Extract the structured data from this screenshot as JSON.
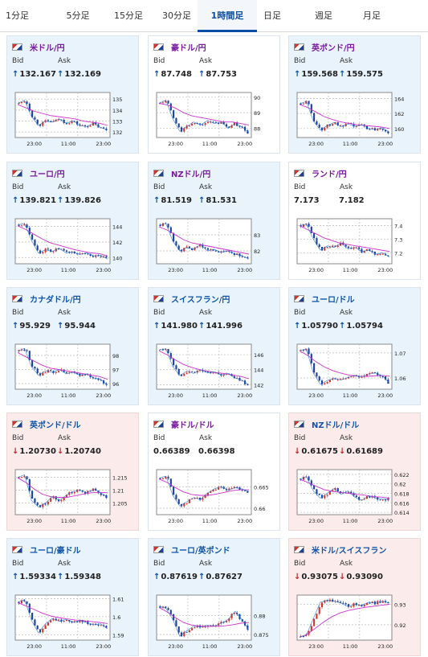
{
  "tabs": [
    {
      "label": "1分足",
      "active": false
    },
    {
      "label": "5分足",
      "active": false
    },
    {
      "label": "15分足",
      "active": false
    },
    {
      "label": "30分足",
      "active": false
    },
    {
      "label": "1時間足",
      "active": true
    },
    {
      "label": "日足",
      "active": false
    },
    {
      "label": "週足",
      "active": false
    },
    {
      "label": "月足",
      "active": false
    }
  ],
  "labels": {
    "bid": "Bid",
    "ask": "Ask"
  },
  "colors": {
    "accent": "#0a4fa6",
    "up": "#0a4fa6",
    "down": "#c0282d",
    "ma": "#cc33cc",
    "ma2": "#2277cc",
    "candle_up": "#d4312c",
    "candle_down": "#1a3fa3"
  },
  "cards": [
    {
      "pair": "米ドル/円",
      "flag": "us-jp-flag",
      "bg": "blue",
      "dir_bid": "up",
      "bid": "132.167",
      "dir_ask": "up",
      "ask": "132.169",
      "chart_data": {
        "type": "candlestick",
        "yticks": [
          "135",
          "134",
          "133",
          "132"
        ],
        "ylim": [
          131.5,
          135.6
        ],
        "xticks": [
          "23:00",
          "11:00",
          "23:00"
        ],
        "trend": [
          134.6,
          134.9,
          133.4,
          132.6,
          133.0,
          132.9,
          133.2,
          132.8,
          133.0,
          132.6,
          132.5,
          132.8,
          132.4,
          132.2
        ],
        "ma": [
          134.5,
          134.2,
          133.9,
          133.7,
          133.5,
          133.4,
          133.3,
          133.2,
          133.0,
          132.9,
          132.8,
          132.6
        ]
      }
    },
    {
      "pair": "豪ドル/円",
      "flag": "au-jp-flag",
      "bg": "white",
      "dir_bid": "up",
      "bid": "87.748",
      "dir_ask": "up",
      "ask": "87.753",
      "chart_data": {
        "type": "candlestick",
        "yticks": [
          "90",
          "89",
          "88"
        ],
        "ylim": [
          87.4,
          90.3
        ],
        "xticks": [
          "23:00",
          "11:00",
          "23:00"
        ],
        "trend": [
          89.6,
          89.8,
          88.6,
          87.8,
          88.1,
          88.4,
          88.2,
          88.5,
          88.3,
          88.4,
          88.0,
          88.3,
          88.1,
          87.7
        ],
        "ma": [
          89.6,
          89.5,
          89.3,
          89.0,
          88.8,
          88.7,
          88.6,
          88.5,
          88.4,
          88.4,
          88.3,
          88.2
        ]
      }
    },
    {
      "pair": "英ポンド/円",
      "flag": "gb-jp-flag",
      "bg": "blue",
      "dir_bid": "up",
      "bid": "159.568",
      "dir_ask": "up",
      "ask": "159.575",
      "chart_data": {
        "type": "candlestick",
        "yticks": [
          "164",
          "162",
          "160"
        ],
        "ylim": [
          158.8,
          164.8
        ],
        "xticks": [
          "23:00",
          "11:00",
          "23:00"
        ],
        "trend": [
          163.3,
          163.6,
          161.0,
          159.8,
          160.4,
          160.8,
          160.2,
          160.6,
          160.3,
          160.5,
          160.0,
          159.9,
          160.1,
          159.5
        ],
        "ma": [
          163.2,
          162.8,
          162.2,
          161.6,
          161.2,
          160.9,
          160.7,
          160.5,
          160.4,
          160.3,
          160.2,
          160.0
        ]
      }
    },
    {
      "pair": "ユーロ/円",
      "flag": "eu-jp-flag",
      "bg": "blue",
      "dir_bid": "up",
      "bid": "139.821",
      "dir_ask": "up",
      "ask": "139.826",
      "chart_data": {
        "type": "candlestick",
        "yticks": [
          "144",
          "142",
          "140"
        ],
        "ylim": [
          139.2,
          145.0
        ],
        "xticks": [
          "23:00",
          "11:00",
          "23:00"
        ],
        "trend": [
          144.2,
          144.4,
          142.2,
          140.6,
          141.0,
          140.8,
          141.2,
          140.6,
          140.7,
          140.4,
          140.6,
          140.2,
          140.3,
          139.8
        ],
        "ma": [
          144.1,
          143.6,
          143.0,
          142.4,
          141.9,
          141.6,
          141.3,
          141.0,
          140.8,
          140.6,
          140.5,
          140.2
        ]
      }
    },
    {
      "pair": "NZドル/円",
      "flag": "nz-jp-flag",
      "bg": "blue",
      "dir_bid": "up",
      "bid": "81.519",
      "dir_ask": "up",
      "ask": "81.531",
      "chart_data": {
        "type": "candlestick",
        "yticks": [
          "83",
          "82"
        ],
        "ylim": [
          81.2,
          84.0
        ],
        "xticks": [
          "23:00",
          "11:00",
          "23:00"
        ],
        "trend": [
          83.6,
          83.7,
          82.6,
          82.0,
          82.2,
          82.1,
          82.4,
          82.0,
          82.1,
          81.9,
          82.0,
          81.8,
          81.7,
          81.5
        ],
        "ma": [
          83.5,
          83.3,
          83.0,
          82.7,
          82.5,
          82.4,
          82.3,
          82.2,
          82.1,
          82.0,
          81.9,
          81.8
        ]
      }
    },
    {
      "pair": "ランド/円",
      "flag": "za-jp-flag",
      "bg": "white",
      "dir_bid": "",
      "bid": "7.173",
      "dir_ask": "",
      "ask": "7.182",
      "chart_data": {
        "type": "candlestick",
        "yticks": [
          "7.4",
          "7.3",
          "7.2"
        ],
        "ylim": [
          7.12,
          7.45
        ],
        "xticks": [
          "23:00",
          "11:00",
          "23:00"
        ],
        "trend": [
          7.4,
          7.41,
          7.3,
          7.22,
          7.25,
          7.24,
          7.27,
          7.23,
          7.24,
          7.21,
          7.22,
          7.19,
          7.2,
          7.17
        ],
        "ma": [
          7.4,
          7.37,
          7.34,
          7.31,
          7.29,
          7.27,
          7.26,
          7.25,
          7.24,
          7.23,
          7.22,
          7.21
        ]
      }
    },
    {
      "pair": "カナダドル/円",
      "flag": "ca-jp-flag",
      "bg": "blue",
      "dir_bid": "up",
      "bid": "95.929",
      "dir_ask": "up",
      "ask": "95.944",
      "chart_data": {
        "type": "candlestick",
        "yticks": [
          "98",
          "97",
          "96"
        ],
        "ylim": [
          95.6,
          98.8
        ],
        "xticks": [
          "23:00",
          "11:00",
          "23:00"
        ],
        "trend": [
          98.3,
          98.5,
          97.2,
          96.6,
          96.9,
          96.8,
          97.0,
          96.7,
          96.8,
          96.6,
          96.7,
          96.4,
          96.3,
          95.9
        ],
        "ma": [
          98.2,
          97.9,
          97.6,
          97.3,
          97.1,
          97.0,
          96.9,
          96.8,
          96.7,
          96.6,
          96.5,
          96.3
        ]
      }
    },
    {
      "pair": "スイスフラン/円",
      "flag": "ch-jp-flag",
      "bg": "blue",
      "dir_bid": "up",
      "bid": "141.980",
      "dir_ask": "up",
      "ask": "141.996",
      "chart_data": {
        "type": "candlestick",
        "yticks": [
          "146",
          "144",
          "142"
        ],
        "ylim": [
          141.4,
          147.4
        ],
        "xticks": [
          "23:00",
          "11:00",
          "23:00"
        ],
        "trend": [
          146.6,
          146.8,
          144.4,
          143.2,
          143.8,
          143.5,
          144.0,
          143.6,
          143.7,
          143.3,
          143.5,
          142.9,
          142.6,
          142.0
        ],
        "ma": [
          146.5,
          146.0,
          145.3,
          144.7,
          144.3,
          144.0,
          143.8,
          143.6,
          143.5,
          143.3,
          143.1,
          142.8
        ]
      }
    },
    {
      "pair": "ユーロ/ドル",
      "flag": "eu-us-flag",
      "bg": "blue",
      "dir_bid": "up",
      "bid": "1.05790",
      "dir_ask": "up",
      "ask": "1.05794",
      "chart_data": {
        "type": "candlestick",
        "yticks": [
          "1.07",
          "1.06"
        ],
        "ylim": [
          1.0555,
          1.0735
        ],
        "xticks": [
          "23:00",
          "11:00",
          "23:00"
        ],
        "trend": [
          1.071,
          1.0715,
          1.062,
          1.0575,
          1.059,
          1.0598,
          1.0592,
          1.0602,
          1.061,
          1.0605,
          1.0615,
          1.062,
          1.0608,
          1.0579
        ],
        "ma": [
          1.0708,
          1.069,
          1.0665,
          1.0645,
          1.063,
          1.062,
          1.0612,
          1.0607,
          1.0606,
          1.0608,
          1.061,
          1.0607
        ]
      }
    },
    {
      "pair": "英ポンド/ドル",
      "flag": "gb-us-flag",
      "bg": "pink",
      "dir_bid": "down",
      "bid": "1.20730",
      "dir_ask": "down",
      "ask": "1.20740",
      "chart_data": {
        "type": "candlestick",
        "yticks": [
          "1.215",
          "1.21",
          "1.205"
        ],
        "ylim": [
          1.2005,
          1.218
        ],
        "xticks": [
          "23:00",
          "11:00",
          "23:00"
        ],
        "trend": [
          1.215,
          1.216,
          1.206,
          1.2035,
          1.205,
          1.2075,
          1.206,
          1.208,
          1.2095,
          1.21,
          1.209,
          1.2105,
          1.209,
          1.2073
        ],
        "ma": [
          1.2148,
          1.213,
          1.2105,
          1.2085,
          1.2075,
          1.2072,
          1.2072,
          1.2078,
          1.2085,
          1.209,
          1.2092,
          1.209
        ]
      }
    },
    {
      "pair": "豪ドル/ドル",
      "flag": "au-us-flag",
      "bg": "white",
      "dir_bid": "",
      "bid": "0.66389",
      "dir_ask": "",
      "ask": "0.66398",
      "chart_data": {
        "type": "candlestick",
        "yticks": [
          "0.665",
          "0.66"
        ],
        "ylim": [
          0.6585,
          0.669
        ],
        "xticks": [
          "23:00",
          "11:00",
          "23:00"
        ],
        "trend": [
          0.667,
          0.6675,
          0.663,
          0.6605,
          0.6615,
          0.6625,
          0.662,
          0.6635,
          0.6645,
          0.665,
          0.6642,
          0.6648,
          0.6645,
          0.6639
        ],
        "ma": [
          0.6668,
          0.666,
          0.6648,
          0.6638,
          0.6632,
          0.663,
          0.663,
          0.6633,
          0.6637,
          0.6641,
          0.6643,
          0.6643
        ]
      }
    },
    {
      "pair": "NZドル/ドル",
      "flag": "nz-us-flag",
      "bg": "pink",
      "dir_bid": "down",
      "bid": "0.61675",
      "dir_ask": "down",
      "ask": "0.61689",
      "chart_data": {
        "type": "candlestick",
        "yticks": [
          "0.622",
          "0.62",
          "0.618",
          "0.616",
          "0.614"
        ],
        "ylim": [
          0.6135,
          0.623
        ],
        "xticks": [
          "23:00",
          "11:00",
          "23:00"
        ],
        "trend": [
          0.621,
          0.6215,
          0.6185,
          0.617,
          0.618,
          0.619,
          0.6178,
          0.6185,
          0.6172,
          0.6165,
          0.6175,
          0.617,
          0.6168,
          0.6167
        ],
        "ma": [
          0.621,
          0.6203,
          0.6195,
          0.6188,
          0.6184,
          0.6182,
          0.618,
          0.6178,
          0.6176,
          0.6173,
          0.6172,
          0.617
        ]
      }
    },
    {
      "pair": "ユーロ/豪ドル",
      "flag": "eu-au-flag",
      "bg": "blue",
      "dir_bid": "up",
      "bid": "1.59334",
      "dir_ask": "up",
      "ask": "1.59348",
      "chart_data": {
        "type": "candlestick",
        "yticks": [
          "1.61",
          "1.6",
          "1.59"
        ],
        "ylim": [
          1.587,
          1.612
        ],
        "xticks": [
          "23:00",
          "11:00",
          "23:00"
        ],
        "trend": [
          1.608,
          1.6095,
          1.598,
          1.591,
          1.596,
          1.599,
          1.5975,
          1.5985,
          1.597,
          1.5978,
          1.5968,
          1.5955,
          1.596,
          1.5933
        ],
        "ma": [
          1.6078,
          1.606,
          1.604,
          1.602,
          1.6005,
          1.5995,
          1.5988,
          1.5982,
          1.5978,
          1.5973,
          1.5968,
          1.5962
        ]
      }
    },
    {
      "pair": "ユーロ/英ポンド",
      "flag": "eu-gb-flag",
      "bg": "blue",
      "dir_bid": "up",
      "bid": "0.87619",
      "dir_ask": "up",
      "ask": "0.87627",
      "chart_data": {
        "type": "candlestick",
        "yticks": [
          "0.88",
          "0.875"
        ],
        "ylim": [
          0.8735,
          0.8855
        ],
        "xticks": [
          "23:00",
          "11:00",
          "23:00"
        ],
        "trend": [
          0.8825,
          0.882,
          0.879,
          0.8745,
          0.876,
          0.8772,
          0.877,
          0.8775,
          0.8772,
          0.878,
          0.879,
          0.8812,
          0.879,
          0.8762
        ],
        "ma": [
          0.8822,
          0.881,
          0.8795,
          0.8782,
          0.8775,
          0.8772,
          0.8771,
          0.8772,
          0.8773,
          0.8776,
          0.878,
          0.8782
        ]
      }
    },
    {
      "pair": "米ドル/スイスフラン",
      "flag": "us-ch-flag",
      "bg": "pink",
      "dir_bid": "down",
      "bid": "0.93075",
      "dir_ask": "down",
      "ask": "0.93090",
      "chart_data": {
        "type": "candlestick",
        "yticks": [
          "0.93",
          "0.92"
        ],
        "ylim": [
          0.9125,
          0.9345
        ],
        "xticks": [
          "23:00",
          "11:00",
          "23:00"
        ],
        "trend": [
          0.914,
          0.915,
          0.923,
          0.931,
          0.932,
          0.9315,
          0.9305,
          0.929,
          0.93,
          0.9295,
          0.931,
          0.9305,
          0.9315,
          0.9307
        ],
        "ma": [
          0.9138,
          0.9155,
          0.9185,
          0.9215,
          0.924,
          0.9258,
          0.927,
          0.9278,
          0.9285,
          0.929,
          0.9295,
          0.93
        ]
      }
    }
  ]
}
